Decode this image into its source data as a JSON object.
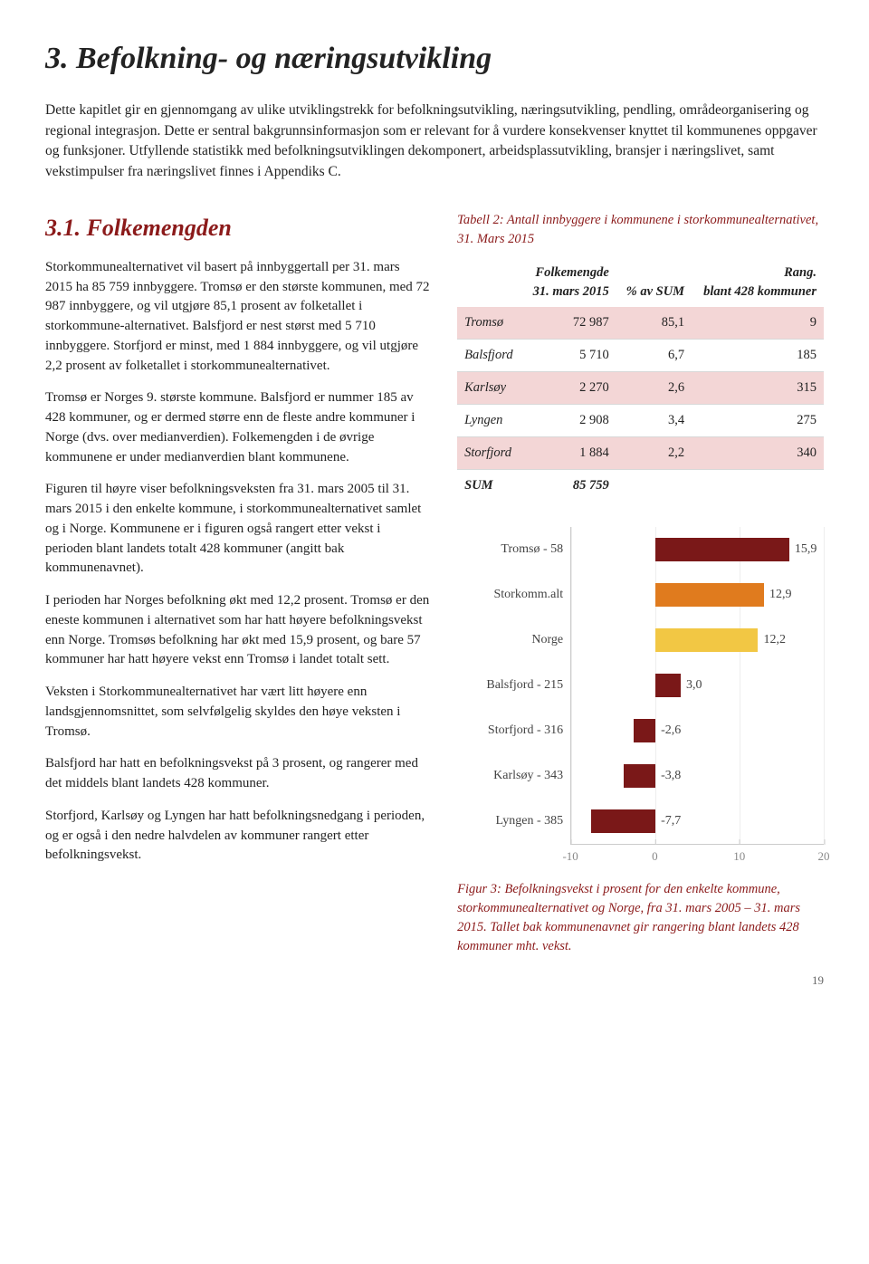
{
  "chapter_title": "3. Befolkning- og næringsutvikling",
  "intro": "Dette kapitlet gir en gjennomgang av ulike utviklingstrekk for befolkningsutvikling, næringsutvikling, pendling, områdeorganisering og regional integrasjon. Dette er sentral bakgrunnsinformasjon som er relevant for å vurdere konsekvenser knyttet til kommunenes oppgaver og funksjoner. Utfyllende statistikk med befolkningsutviklingen dekomponert, arbeidsplassutvikling, bransjer i næringslivet, samt vekstimpulser fra næringslivet finnes i Appendiks C.",
  "section_title": "3.1. Folkemengden",
  "left_paras": [
    "Storkommunealternativet vil basert på inn­byggertall per 31. mars 2015 ha 85 759 innbyggere. Tromsø er den største kommunen, med 72 987 innbyggere, og vil utgjøre 85,1 prosent av folketallet i storkommune-alternativet. Balsfjord er nest størst med 5 710 innbyggere. Storfjord er minst, med 1 884 innbyggere, og vil utgjøre 2,2 prosent av folketallet i storkommunealternativet.",
    "Tromsø er Norges 9. største kommune. Balsfjord er nummer 185 av 428 kommuner, og er dermed større enn de fleste andre kommuner i Norge (dvs. over medianverdien). Folkemengden i de øvrige kommunene er under medianverdien blant kommunene.",
    "Figuren til høyre viser befolkningsveksten fra 31. mars 2005 til 31. mars 2015 i den enkelte kommune, i storkommunealternativet samlet og i Norge. Kommunene er i figuren også rangert etter vekst i perioden blant landets totalt 428 kommuner (angitt bak kommunenavnet).",
    "I perioden har Norges befolkning økt med 12,2 prosent. Tromsø er den eneste kommunen i alternativet som har hatt høyere befolkningsvekst enn Norge. Tromsøs befolkning har økt med 15,9 prosent, og bare 57 kommuner har hatt høyere vekst enn Tromsø i landet totalt sett.",
    "Veksten i Storkommunealternativet har vært litt høyere enn landsgjennomsnittet, som selvfølgelig skyldes den høye veksten i Tromsø.",
    "Balsfjord har hatt en befolkningsvekst på 3 prosent, og rangerer med det middels blant landets 428 kommuner.",
    "Storfjord, Karlsøy og Lyngen har hatt befolkningsnedgang i perioden, og er også i den nedre halvdelen av kommuner rangert etter befolkningsvekst."
  ],
  "table_caption": "Tabell 2: Antall innbyggere i kommunene i storkommunealternativet, 31. Mars 2015",
  "table": {
    "headers": [
      "",
      "Folkemengde 31. mars 2015",
      "% av SUM",
      "Rang. blant 428 kommuner"
    ],
    "rows": [
      {
        "name": "Tromsø",
        "pop": "72 987",
        "pct": "85,1",
        "rank": "9",
        "shade": true
      },
      {
        "name": "Balsfjord",
        "pop": "5 710",
        "pct": "6,7",
        "rank": "185",
        "shade": false
      },
      {
        "name": "Karlsøy",
        "pop": "2 270",
        "pct": "2,6",
        "rank": "315",
        "shade": true
      },
      {
        "name": "Lyngen",
        "pop": "2 908",
        "pct": "3,4",
        "rank": "275",
        "shade": false
      },
      {
        "name": "Storfjord",
        "pop": "1 884",
        "pct": "2,2",
        "rank": "340",
        "shade": true
      }
    ],
    "sum_row": {
      "name": "SUM",
      "pop": "85 759",
      "pct": "",
      "rank": ""
    }
  },
  "chart": {
    "type": "bar",
    "xlim": [
      -10,
      20
    ],
    "ticks": [
      -10,
      0,
      10,
      20
    ],
    "bars": [
      {
        "label": "Tromsø - 58",
        "value": 15.9,
        "val_label": "15,9",
        "color": "#7a1818"
      },
      {
        "label": "Storkomm.alt",
        "value": 12.9,
        "val_label": "12,9",
        "color": "#e07b1e"
      },
      {
        "label": "Norge",
        "value": 12.2,
        "val_label": "12,2",
        "color": "#f2c744"
      },
      {
        "label": "Balsfjord - 215",
        "value": 3.0,
        "val_label": "3,0",
        "color": "#7a1818"
      },
      {
        "label": "Storfjord - 316",
        "value": -2.6,
        "val_label": "-2,6",
        "color": "#7a1818"
      },
      {
        "label": "Karlsøy - 343",
        "value": -3.8,
        "val_label": "-3,8",
        "color": "#7a1818"
      },
      {
        "label": "Lyngen - 385",
        "value": -7.7,
        "val_label": "-7,7",
        "color": "#7a1818"
      }
    ]
  },
  "fig_caption": "Figur 3: Befolkningsvekst i prosent for den enkelte kommune, storkommunealternativet og Norge, fra 31. mars 2005 – 31. mars 2015. Tallet bak kommunenavnet gir rangering blant landets 428 kommuner mht. vekst.",
  "page_num": "19"
}
